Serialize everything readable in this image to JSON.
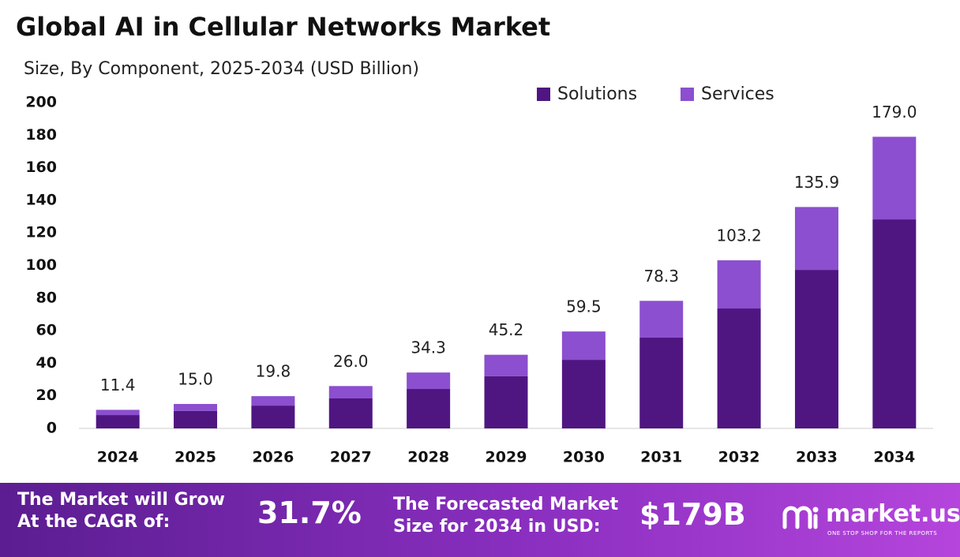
{
  "chart_data": {
    "type": "stacked-bar",
    "title": "Global AI in Cellular Networks Market",
    "subtitle": "Size, By Component, 2025-2034 (USD Billion)",
    "categories": [
      "2024",
      "2025",
      "2026",
      "2027",
      "2028",
      "2029",
      "2030",
      "2031",
      "2032",
      "2033",
      "2034"
    ],
    "series": [
      {
        "name": "Solutions",
        "color": "#4f1682",
        "values": [
          8.2,
          10.7,
          14.0,
          18.4,
          24.2,
          32.0,
          42.1,
          55.7,
          73.6,
          97.3,
          128.3
        ]
      },
      {
        "name": "Services",
        "color": "#8b4fcf",
        "values": [
          3.2,
          4.3,
          5.8,
          7.6,
          10.1,
          13.2,
          17.4,
          22.6,
          29.6,
          38.6,
          50.7
        ]
      }
    ],
    "totals": [
      11.4,
      15.0,
      19.8,
      26.0,
      34.3,
      45.2,
      59.5,
      78.3,
      103.2,
      135.9,
      179.0
    ],
    "total_labels": [
      "11.4",
      "15.0",
      "19.8",
      "26.0",
      "34.3",
      "45.2",
      "59.5",
      "78.3",
      "103.2",
      "135.9",
      "179.0"
    ],
    "ylim": [
      0,
      200
    ],
    "yticks": [
      0,
      20,
      40,
      60,
      80,
      100,
      120,
      140,
      160,
      180,
      200
    ]
  },
  "footer": {
    "cagr_label": [
      "The Market will Grow",
      "At the CAGR of:"
    ],
    "cagr": "31.7%",
    "forecast_label": [
      "The Forecasted Market",
      "Size for 2034 in USD:"
    ],
    "forecast": "$179B",
    "brand": "market.us",
    "tagline": "ONE STOP SHOP FOR THE REPORTS"
  }
}
